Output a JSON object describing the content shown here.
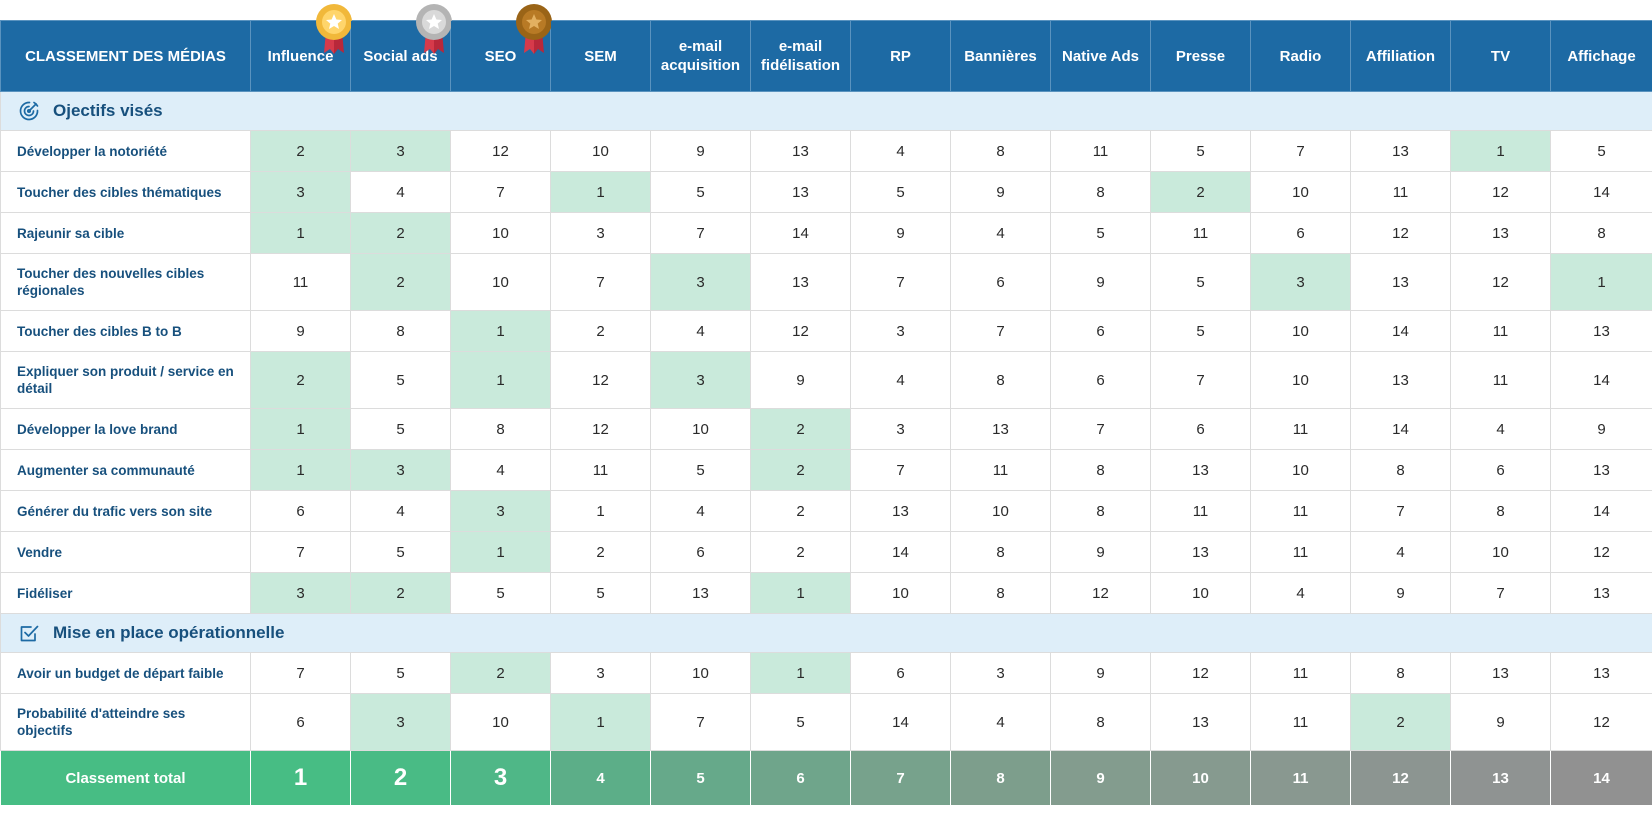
{
  "header": {
    "corner_label": "CLASSEMENT DES MÉDIAS",
    "media": [
      {
        "label": "Influence",
        "medal": "gold-medal-icon"
      },
      {
        "label": "Social ads",
        "medal": "silver-medal-icon"
      },
      {
        "label": "SEO",
        "medal": "bronze-medal-icon"
      },
      {
        "label": "SEM"
      },
      {
        "label": "e-mail acquisition"
      },
      {
        "label": "e-mail fidélisation"
      },
      {
        "label": "RP"
      },
      {
        "label": "Bannières"
      },
      {
        "label": "Native Ads"
      },
      {
        "label": "Presse"
      },
      {
        "label": "Radio"
      },
      {
        "label": "Affiliation"
      },
      {
        "label": "TV"
      },
      {
        "label": "Affichage"
      }
    ]
  },
  "sections": [
    {
      "title": "Ojectifs visés",
      "icon": "target-icon",
      "rows": [
        {
          "label": "Développer la notoriété",
          "values": [
            2,
            3,
            12,
            10,
            9,
            13,
            4,
            8,
            11,
            5,
            7,
            13,
            1,
            5
          ],
          "highlight": [
            0,
            1,
            12
          ]
        },
        {
          "label": "Toucher des cibles thématiques",
          "values": [
            3,
            4,
            7,
            1,
            5,
            13,
            5,
            9,
            8,
            2,
            10,
            11,
            12,
            14
          ],
          "highlight": [
            0,
            3,
            9
          ]
        },
        {
          "label": "Rajeunir sa cible",
          "values": [
            1,
            2,
            10,
            3,
            7,
            14,
            9,
            4,
            5,
            11,
            6,
            12,
            13,
            8
          ],
          "highlight": [
            0,
            1
          ]
        },
        {
          "label": "Toucher des nouvelles cibles régionales",
          "values": [
            11,
            2,
            10,
            7,
            3,
            13,
            7,
            6,
            9,
            5,
            3,
            13,
            12,
            1
          ],
          "highlight": [
            1,
            4,
            10,
            13
          ],
          "tall": true
        },
        {
          "label": "Toucher des cibles B to B",
          "values": [
            9,
            8,
            1,
            2,
            4,
            12,
            3,
            7,
            6,
            5,
            10,
            14,
            11,
            13
          ],
          "highlight": [
            2
          ]
        },
        {
          "label": "Expliquer son produit / service en détail",
          "values": [
            2,
            5,
            1,
            12,
            3,
            9,
            4,
            8,
            6,
            7,
            10,
            13,
            11,
            14
          ],
          "highlight": [
            0,
            2,
            4
          ],
          "tall": true
        },
        {
          "label": "Développer la love brand",
          "values": [
            1,
            5,
            8,
            12,
            10,
            2,
            3,
            13,
            7,
            6,
            11,
            14,
            4,
            9
          ],
          "highlight": [
            0,
            5
          ]
        },
        {
          "label": "Augmenter sa communauté",
          "values": [
            1,
            3,
            4,
            11,
            5,
            2,
            7,
            11,
            8,
            13,
            10,
            8,
            6,
            13
          ],
          "highlight": [
            0,
            1,
            5
          ]
        },
        {
          "label": "Générer du trafic vers son site",
          "values": [
            6,
            4,
            3,
            1,
            4,
            2,
            13,
            10,
            8,
            11,
            11,
            7,
            8,
            14
          ],
          "highlight": [
            2
          ]
        },
        {
          "label": "Vendre",
          "values": [
            7,
            5,
            1,
            2,
            6,
            2,
            14,
            8,
            9,
            13,
            11,
            4,
            10,
            12
          ],
          "highlight": [
            2
          ]
        },
        {
          "label": "Fidéliser",
          "values": [
            3,
            2,
            5,
            5,
            13,
            1,
            10,
            8,
            12,
            10,
            4,
            9,
            7,
            13
          ],
          "highlight": [
            0,
            1,
            5
          ]
        }
      ]
    },
    {
      "title": "Mise en place opérationnelle",
      "icon": "checkbox-icon",
      "rows": [
        {
          "label": "Avoir un budget de départ faible",
          "values": [
            7,
            5,
            2,
            3,
            10,
            1,
            6,
            3,
            9,
            12,
            11,
            8,
            13,
            13
          ],
          "highlight": [
            2,
            5
          ]
        },
        {
          "label": "Probabilité d'atteindre ses objectifs",
          "values": [
            6,
            3,
            10,
            1,
            7,
            5,
            14,
            4,
            8,
            13,
            11,
            2,
            9,
            12
          ],
          "highlight": [
            1,
            3,
            11
          ],
          "tall": true
        }
      ]
    }
  ],
  "total": {
    "label": "Classement total",
    "values": [
      1,
      2,
      3,
      4,
      5,
      6,
      7,
      8,
      9,
      10,
      11,
      12,
      13,
      14
    ],
    "colors": [
      "#47bd84",
      "#49bb85",
      "#4fb787",
      "#5cae88",
      "#66a98a",
      "#6fa58b",
      "#77a28c",
      "#7d9e8c",
      "#839c8e",
      "#869a8f",
      "#899890",
      "#8c9591",
      "#8f9392",
      "#919191"
    ],
    "label_color": "#47bd84"
  }
}
